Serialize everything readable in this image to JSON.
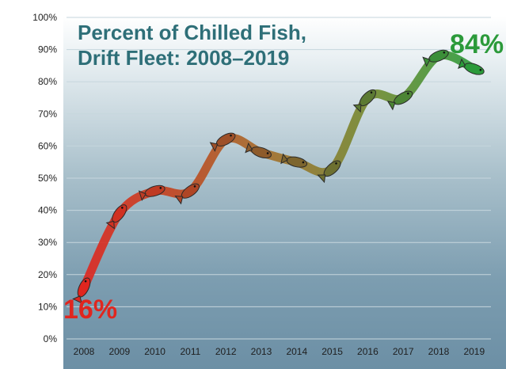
{
  "chart_data": {
    "type": "line",
    "title_line1": "Percent of Chilled Fish,",
    "title_line2": "Drift Fleet: 2008–2019",
    "xlabel": "",
    "ylabel": "",
    "x": [
      "2008",
      "2009",
      "2010",
      "2011",
      "2012",
      "2013",
      "2014",
      "2015",
      "2016",
      "2017",
      "2018",
      "2019"
    ],
    "series": [
      {
        "values": [
          16,
          39,
          46,
          46,
          62,
          58,
          55,
          53,
          75,
          75,
          88,
          84
        ]
      }
    ],
    "ylim": [
      0,
      100
    ],
    "y_ticks": [
      "0%",
      "10%",
      "20%",
      "30%",
      "40%",
      "50%",
      "60%",
      "70%",
      "80%",
      "90%",
      "100%"
    ],
    "grid": true,
    "annotations": {
      "start": "16%",
      "end": "84%"
    },
    "colors": {
      "start": "#e0261f",
      "end": "#2b9a3a",
      "title": "#2e6f78",
      "grid": "#c6d6dd"
    }
  }
}
